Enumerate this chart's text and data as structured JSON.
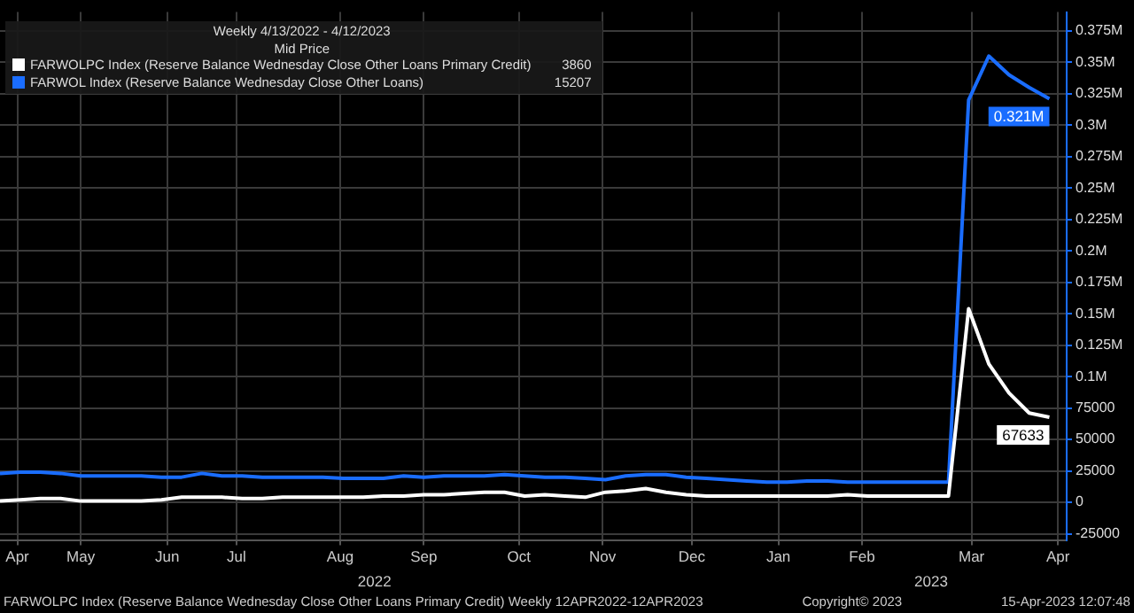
{
  "chart_data": {
    "type": "line",
    "title": "Weekly 4/13/2022 - 4/12/2023",
    "subtitle": "Mid Price",
    "x": [
      "2022-04-13",
      "2022-04-20",
      "2022-04-27",
      "2022-05-04",
      "2022-05-11",
      "2022-05-18",
      "2022-05-25",
      "2022-06-01",
      "2022-06-08",
      "2022-06-15",
      "2022-06-22",
      "2022-06-29",
      "2022-07-06",
      "2022-07-13",
      "2022-07-20",
      "2022-07-27",
      "2022-08-03",
      "2022-08-10",
      "2022-08-17",
      "2022-08-24",
      "2022-08-31",
      "2022-09-07",
      "2022-09-14",
      "2022-09-21",
      "2022-09-28",
      "2022-10-05",
      "2022-10-12",
      "2022-10-19",
      "2022-10-26",
      "2022-11-02",
      "2022-11-09",
      "2022-11-16",
      "2022-11-23",
      "2022-11-30",
      "2022-12-07",
      "2022-12-14",
      "2022-12-21",
      "2022-12-28",
      "2023-01-04",
      "2023-01-11",
      "2023-01-18",
      "2023-01-25",
      "2023-02-01",
      "2023-02-08",
      "2023-02-15",
      "2023-02-22",
      "2023-03-01",
      "2023-03-08",
      "2023-03-15",
      "2023-03-22",
      "2023-03-29",
      "2023-04-05",
      "2023-04-12"
    ],
    "series": [
      {
        "name": "FARWOLPC Index (Reserve Balance Wednesday Close Other Loans Primary Credit)",
        "color": "#ffffff",
        "values": [
          1000,
          2000,
          3000,
          3000,
          1000,
          1000,
          1000,
          1000,
          2000,
          4000,
          4000,
          4000,
          3000,
          3000,
          4000,
          4000,
          4000,
          4000,
          4000,
          5000,
          5000,
          6000,
          6000,
          7000,
          8000,
          8000,
          5000,
          6000,
          5000,
          4000,
          8000,
          9000,
          11000,
          8000,
          6000,
          5000,
          5000,
          5000,
          5000,
          5000,
          5000,
          5000,
          6000,
          5000,
          5000,
          5000,
          5000,
          5000,
          154000,
          110000,
          87000,
          71000,
          67633
        ],
        "value_labels": [
          null,
          null,
          null,
          null,
          null,
          null,
          null,
          null,
          null,
          null,
          null,
          null,
          null,
          null,
          null,
          null,
          null,
          null,
          null,
          null,
          null,
          null,
          null,
          null,
          null,
          null,
          null,
          null,
          null,
          null,
          null,
          null,
          null,
          null,
          null,
          null,
          null,
          null,
          null,
          null,
          null,
          null,
          null,
          null,
          null,
          null,
          null,
          null,
          null,
          null,
          null,
          null,
          "67633"
        ]
      },
      {
        "name": "FARWOL Index (Reserve Balance Wednesday Close Other Loans)",
        "color": "#1a6dff",
        "values": [
          23000,
          24000,
          24000,
          23000,
          21000,
          21000,
          21000,
          21000,
          20000,
          20000,
          23000,
          21000,
          21000,
          20000,
          20000,
          20000,
          20000,
          19000,
          19000,
          19000,
          21000,
          20000,
          21000,
          21000,
          21000,
          22000,
          21000,
          20000,
          20000,
          19000,
          18000,
          21000,
          22000,
          22000,
          20000,
          19000,
          18000,
          17000,
          16000,
          16000,
          17000,
          17000,
          16000,
          16000,
          16000,
          16000,
          16000,
          16000,
          320000,
          355000,
          340000,
          330000,
          321000
        ],
        "value_labels": [
          null,
          null,
          null,
          null,
          null,
          null,
          null,
          null,
          null,
          null,
          null,
          null,
          null,
          null,
          null,
          null,
          null,
          null,
          null,
          null,
          null,
          null,
          null,
          null,
          null,
          null,
          null,
          null,
          null,
          null,
          null,
          null,
          null,
          null,
          null,
          null,
          null,
          null,
          null,
          null,
          null,
          null,
          null,
          null,
          null,
          null,
          null,
          null,
          null,
          null,
          null,
          null,
          "0.321M"
        ]
      }
    ],
    "xlim": [
      "2022-04-13",
      "2023-04-18"
    ],
    "xticks": [
      {
        "value": "2022-04-19",
        "label": "Apr"
      },
      {
        "value": "2022-05-11",
        "label": "May"
      },
      {
        "value": "2022-06-10",
        "label": "Jun"
      },
      {
        "value": "2022-07-04",
        "label": "Jul"
      },
      {
        "value": "2022-08-09",
        "label": "Aug"
      },
      {
        "value": "2022-09-07",
        "label": "Sep"
      },
      {
        "value": "2022-10-10",
        "label": "Oct"
      },
      {
        "value": "2022-11-08",
        "label": "Nov"
      },
      {
        "value": "2022-12-09",
        "label": "Dec"
      },
      {
        "value": "2023-01-08",
        "label": "Jan"
      },
      {
        "value": "2023-02-06",
        "label": "Feb"
      },
      {
        "value": "2023-03-16",
        "label": "Mar"
      },
      {
        "value": "2023-04-15",
        "label": "Apr"
      }
    ],
    "ylim": [
      -30000,
      390000
    ],
    "yticks": [
      -25000,
      0,
      25000,
      50000,
      75000,
      {
        "value": 100000,
        "label": "0.1M"
      },
      {
        "value": 125000,
        "label": "0.125M"
      },
      {
        "value": 150000,
        "label": "0.15M"
      },
      {
        "value": 175000,
        "label": "0.175M"
      },
      {
        "value": 200000,
        "label": "0.2M"
      },
      {
        "value": 225000,
        "label": "0.225M"
      },
      {
        "value": 250000,
        "label": "0.25M"
      },
      {
        "value": 275000,
        "label": "0.275M"
      },
      {
        "value": 300000,
        "label": "0.3M"
      },
      {
        "value": 325000,
        "label": "0.325M"
      },
      {
        "value": 350000,
        "label": "0.35M"
      },
      {
        "value": 375000,
        "label": "0.375M"
      }
    ],
    "grid": true,
    "legend": "top left",
    "marker": "none",
    "line_style": "solid",
    "annotations": [
      "3860",
      "15207",
      "2022",
      "2023",
      "FARWOLPC Index (Reserve Balance Wednesday Close Other Loans Primary Credit)  Weekly 12APR2022-12APR2023",
      "Copyright© 2023",
      "15-Apr-2023 12:07:48"
    ]
  }
}
